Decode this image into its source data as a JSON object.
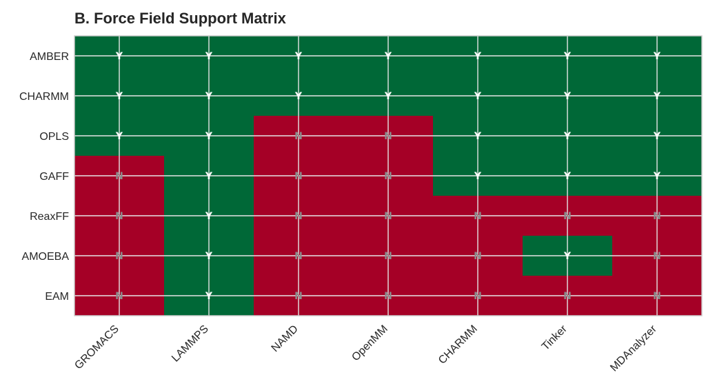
{
  "chart_data": {
    "type": "heatmap",
    "title": "B. Force Field Support Matrix",
    "rows": [
      "AMBER",
      "CHARMM",
      "OPLS",
      "GAFF",
      "ReaxFF",
      "AMOEBA",
      "EAM"
    ],
    "columns": [
      "GROMACS",
      "LAMMPS",
      "NAMD",
      "OpenMM",
      "CHARMM",
      "Tinker",
      "MDAnalyzer"
    ],
    "values": [
      [
        "Y",
        "Y",
        "Y",
        "Y",
        "Y",
        "Y",
        "Y"
      ],
      [
        "Y",
        "Y",
        "Y",
        "Y",
        "Y",
        "Y",
        "Y"
      ],
      [
        "Y",
        "Y",
        "N",
        "N",
        "Y",
        "Y",
        "Y"
      ],
      [
        "N",
        "Y",
        "N",
        "N",
        "Y",
        "Y",
        "Y"
      ],
      [
        "N",
        "Y",
        "N",
        "N",
        "N",
        "N",
        "N"
      ],
      [
        "N",
        "Y",
        "N",
        "N",
        "N",
        "Y",
        "N"
      ],
      [
        "N",
        "Y",
        "N",
        "N",
        "N",
        "N",
        "N"
      ]
    ],
    "colors": {
      "Y": "#006837",
      "N": "#a50026"
    },
    "label_colors": {
      "Y": "#ffffff",
      "N": "#8c8c8c"
    },
    "grid": true
  }
}
